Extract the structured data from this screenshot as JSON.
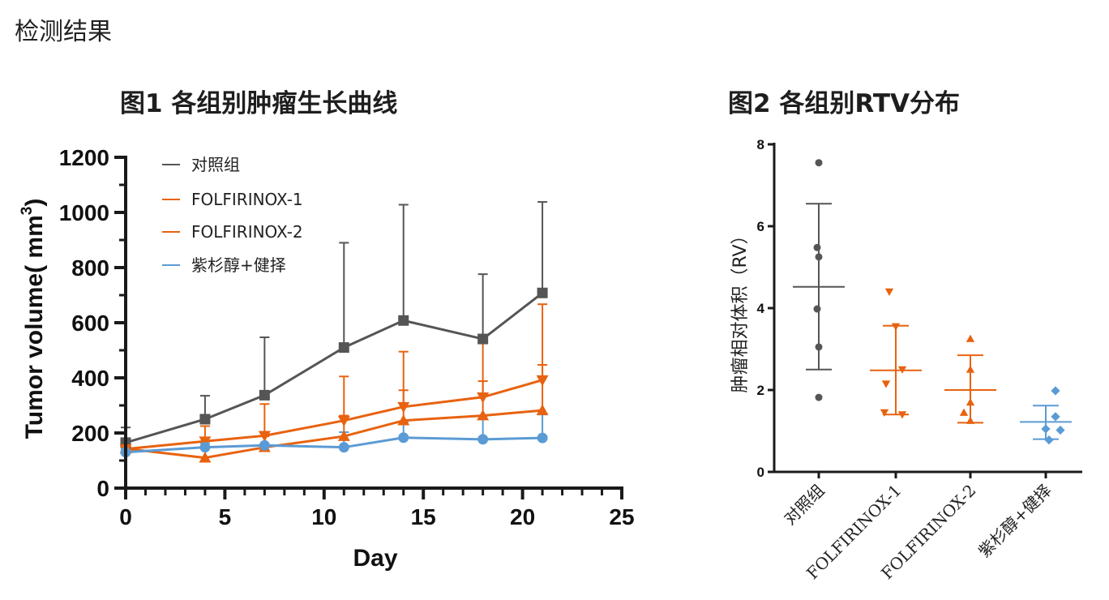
{
  "page": {
    "section_title": "检测结果"
  },
  "chart_data": [
    {
      "type": "line",
      "title": "图1 各组别肿瘤生长曲线",
      "xlabel": "Day",
      "ylabel": "Tumor volume( mm",
      "ylabel_sup": "3",
      "ylabel_close": ")",
      "xlim": [
        0,
        25
      ],
      "ylim": [
        0,
        1200
      ],
      "x_ticks": [
        0,
        5,
        10,
        15,
        20,
        25
      ],
      "y_ticks": [
        0,
        200,
        400,
        600,
        800,
        1000,
        1200
      ],
      "legend_position": "top-left",
      "series": [
        {
          "name": "对照组",
          "color": "#555555",
          "marker": "square",
          "x": [
            0,
            4,
            7,
            11,
            14,
            18,
            21
          ],
          "values": [
            165,
            250,
            337,
            510,
            608,
            541,
            708
          ],
          "error": [
            55,
            85,
            210,
            380,
            420,
            235,
            330
          ]
        },
        {
          "name": "FOLFIRINOX-1",
          "color": "#e8620f",
          "marker": "triangle-down",
          "x": [
            0,
            4,
            7,
            11,
            14,
            18,
            21
          ],
          "values": [
            142,
            170,
            190,
            245,
            295,
            330,
            392
          ],
          "error": [
            25,
            55,
            115,
            160,
            200,
            210,
            275
          ]
        },
        {
          "name": "FOLFIRINOX-2",
          "color": "#e8620f",
          "marker": "triangle-up",
          "x": [
            0,
            4,
            7,
            11,
            14,
            18,
            21
          ],
          "values": [
            143,
            110,
            148,
            188,
            245,
            263,
            282
          ],
          "error": [
            20,
            35,
            40,
            75,
            110,
            125,
            165
          ]
        },
        {
          "name": "紫杉醇+健择",
          "color": "#5b9bd5",
          "marker": "circle",
          "x": [
            0,
            4,
            7,
            11,
            14,
            18,
            21
          ],
          "values": [
            130,
            148,
            155,
            148,
            183,
            177,
            182
          ],
          "error": [
            12,
            15,
            45,
            55,
            55,
            85,
            85
          ]
        }
      ]
    },
    {
      "type": "scatter",
      "title": "图2 各组别RTV分布",
      "ylabel": "肿瘤相对体积（RV）",
      "ylim": [
        0,
        8
      ],
      "y_ticks": [
        0,
        2,
        4,
        6,
        8
      ],
      "categories": [
        "对照组",
        "FOLFIRINOX-1",
        "FOLFIRINOX-2",
        "紫杉醇+健择"
      ],
      "groups": [
        {
          "name": "对照组",
          "color": "#555555",
          "marker": "circle",
          "points": [
            7.55,
            5.48,
            5.25,
            3.98,
            3.05,
            1.82
          ],
          "mean": 4.52,
          "upper": 6.55,
          "lower": 2.5
        },
        {
          "name": "FOLFIRINOX-1",
          "color": "#e8620f",
          "marker": "triangle-down",
          "points": [
            4.4,
            3.55,
            2.5,
            2.15,
            1.45,
            1.4
          ],
          "mean": 2.48,
          "upper": 3.57,
          "lower": 1.4
        },
        {
          "name": "FOLFIRINOX-2",
          "color": "#e8620f",
          "marker": "triangle-up",
          "points": [
            3.25,
            2.5,
            1.7,
            1.45,
            1.25
          ],
          "mean": 2.0,
          "upper": 2.85,
          "lower": 1.2
        },
        {
          "name": "紫杉醇+健择",
          "color": "#5b9bd5",
          "marker": "diamond",
          "points": [
            1.98,
            1.35,
            1.05,
            1.02,
            0.78
          ],
          "mean": 1.22,
          "upper": 1.62,
          "lower": 0.8
        }
      ]
    }
  ]
}
